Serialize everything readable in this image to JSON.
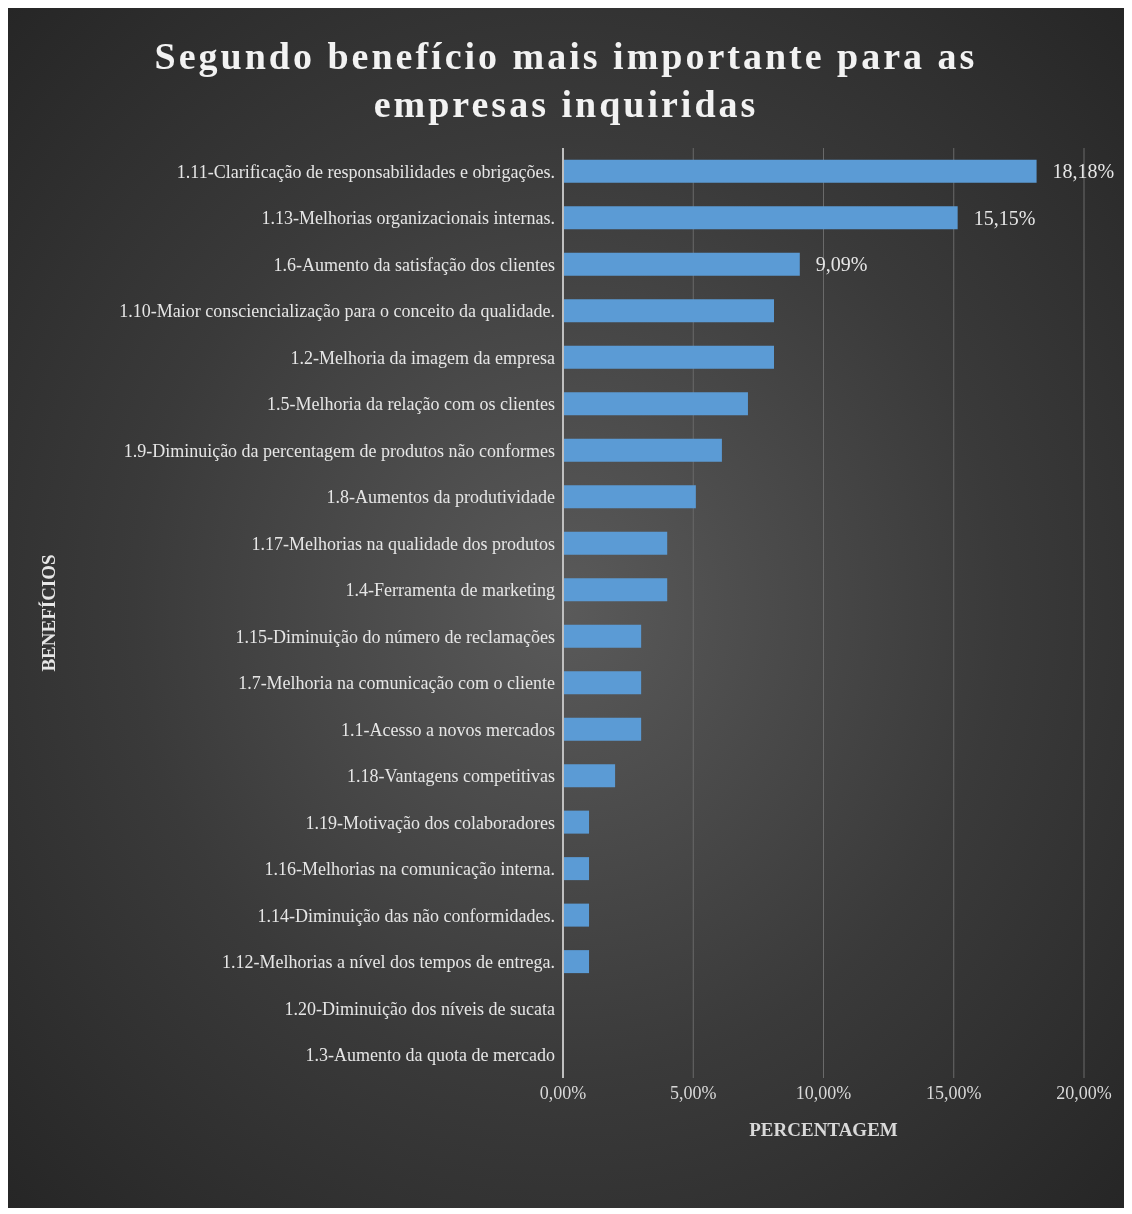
{
  "chart_data": {
    "type": "bar",
    "orientation": "horizontal",
    "title": "Segundo benefício mais importante para as empresas inquiridas",
    "xlabel": "PERCENTAGEM",
    "ylabel": "BENEFÍCIOS",
    "categories": [
      "1.11-Clarificação de responsabilidades e obrigações.",
      "1.13-Melhorias organizacionais internas.",
      "1.6-Aumento da satisfação dos clientes",
      "1.10-Maior consciencialização para o conceito da qualidade.",
      "1.2-Melhoria da imagem da empresa",
      "1.5-Melhoria da relação com os clientes",
      "1.9-Diminuição da percentagem de produtos não conformes",
      "1.8-Aumentos da produtividade",
      "1.17-Melhorias na qualidade dos produtos",
      "1.4-Ferramenta de marketing",
      "1.15-Diminuição do número de reclamações",
      "1.7-Melhoria na comunicação com o cliente",
      "1.1-Acesso a novos mercados",
      "1.18-Vantagens competitivas",
      "1.19-Motivação dos colaboradores",
      "1.16-Melhorias na comunicação interna.",
      "1.14-Diminuição das não conformidades.",
      "1.12-Melhorias a nível dos tempos de entrega.",
      "1.20-Diminuição dos níveis de sucata",
      "1.3-Aumento da quota de mercado"
    ],
    "values": [
      18.18,
      15.15,
      9.09,
      8.1,
      8.1,
      7.1,
      6.1,
      5.1,
      4.0,
      4.0,
      3.0,
      3.0,
      3.0,
      2.0,
      1.0,
      1.0,
      1.0,
      1.0,
      0,
      0
    ],
    "value_labels": [
      "18,18%",
      "15,15%",
      "9,09%",
      null,
      null,
      null,
      null,
      null,
      null,
      null,
      null,
      null,
      null,
      null,
      null,
      null,
      null,
      null,
      null,
      null
    ],
    "color": "#5b9bd5",
    "xlim": [
      0,
      20
    ],
    "xticks": [
      {
        "value": 0,
        "label": "0,00%"
      },
      {
        "value": 5,
        "label": "5,00%"
      },
      {
        "value": 10,
        "label": "10,00%"
      },
      {
        "value": 15,
        "label": "15,00%"
      },
      {
        "value": 20,
        "label": "20,00%"
      }
    ],
    "grid": "x"
  }
}
